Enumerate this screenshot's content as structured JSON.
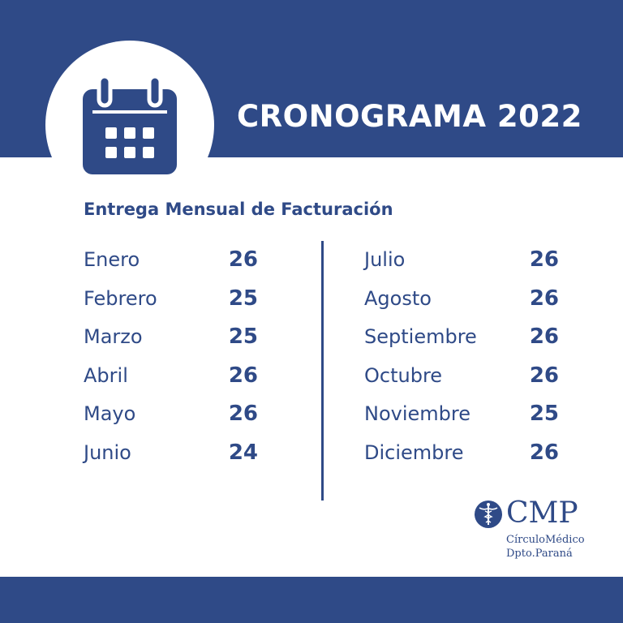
{
  "header": {
    "title": "CRONOGRAMA 2022",
    "icon": "calendar-icon",
    "background_color": "#2f4a87"
  },
  "subtitle": "Entrega Mensual de Facturación",
  "schedule": {
    "left": [
      {
        "month": "Enero",
        "day": "26"
      },
      {
        "month": "Febrero",
        "day": "25"
      },
      {
        "month": "Marzo",
        "day": "25"
      },
      {
        "month": "Abril",
        "day": "26"
      },
      {
        "month": "Mayo",
        "day": "26"
      },
      {
        "month": "Junio",
        "day": "24"
      }
    ],
    "right": [
      {
        "month": "Julio",
        "day": "26"
      },
      {
        "month": "Agosto",
        "day": "26"
      },
      {
        "month": "Septiembre",
        "day": "26"
      },
      {
        "month": "Octubre",
        "day": "26"
      },
      {
        "month": "Noviembre",
        "day": "25"
      },
      {
        "month": "Diciembre",
        "day": "26"
      }
    ]
  },
  "logo": {
    "abbr": "CMP",
    "line1": "CírculoMédico",
    "line2": "Dpto.Paraná",
    "icon": "caduceus-icon"
  },
  "colors": {
    "primary": "#2f4a87",
    "background": "#ffffff"
  }
}
